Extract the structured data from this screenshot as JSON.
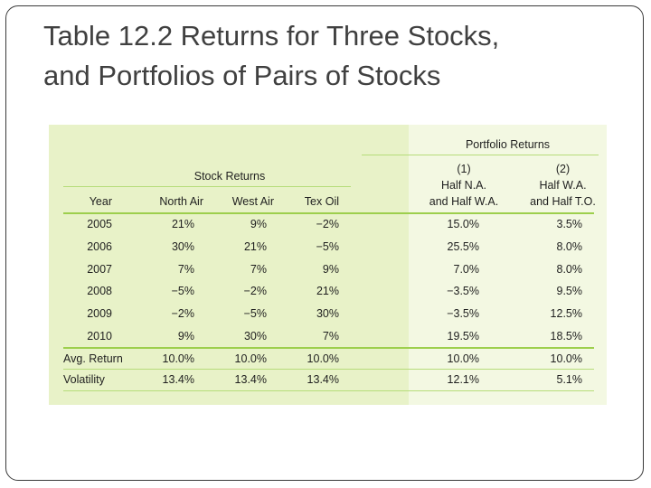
{
  "title_lines": [
    "Table 12.2  Returns for Three Stocks,",
    "and Portfolios of Pairs of Stocks"
  ],
  "table": {
    "group_headers": {
      "stock": "Stock Returns",
      "portfolio": "Portfolio Returns"
    },
    "portfolio_numbers": [
      "(1)",
      "(2)"
    ],
    "portfolio_line1": [
      "Half N.A.",
      "Half W.A."
    ],
    "columns": [
      "Year",
      "North Air",
      "West Air",
      "Tex Oil",
      "and Half W.A.",
      "and Half T.O."
    ],
    "rows": [
      [
        "2005",
        "21%",
        "9%",
        "−2%",
        "15.0%",
        "3.5%"
      ],
      [
        "2006",
        "30%",
        "21%",
        "−5%",
        "25.5%",
        "8.0%"
      ],
      [
        "2007",
        "7%",
        "7%",
        "9%",
        "7.0%",
        "8.0%"
      ],
      [
        "2008",
        "−5%",
        "−2%",
        "21%",
        "−3.5%",
        "9.5%"
      ],
      [
        "2009",
        "−2%",
        "−5%",
        "30%",
        "−3.5%",
        "12.5%"
      ],
      [
        "2010",
        "9%",
        "30%",
        "7%",
        "19.5%",
        "18.5%"
      ]
    ],
    "summary_rows": [
      [
        "Avg. Return",
        "10.0%",
        "10.0%",
        "10.0%",
        "10.0%",
        "10.0%"
      ],
      [
        "Volatility",
        "13.4%",
        "13.4%",
        "13.4%",
        "12.1%",
        "5.1%"
      ]
    ]
  },
  "colors": {
    "panel": "#e8f2c8",
    "portfolio_band": "#f3f8e2",
    "rule": "#9dcf4d",
    "title_text": "#404040"
  }
}
